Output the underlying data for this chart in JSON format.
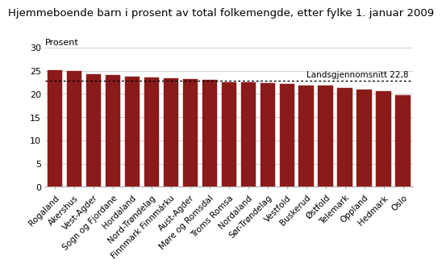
{
  "title": "Hjemmeboende barn i prosent av total folkemengde, etter fylke 1. januar 2009",
  "ylabel": "Prosent",
  "categories": [
    "Rogaland",
    "Akershus",
    "Vest-Agder",
    "Sogn og Fjordane",
    "Hordaland",
    "Nord-Trøndelag",
    "Finnmark Finnmárku",
    "Aust-Agder",
    "Møre og Romsdal",
    "Troms Romsa",
    "Nordaland",
    "Sør-Trøndelag",
    "Vestfold",
    "Buskerud",
    "Østfold",
    "Telemark",
    "Oppland",
    "Hedmark",
    "Oslo"
  ],
  "values": [
    25.2,
    24.9,
    24.3,
    24.0,
    23.7,
    23.6,
    23.4,
    23.2,
    23.1,
    22.6,
    22.5,
    22.3,
    22.1,
    21.9,
    21.8,
    21.3,
    20.9,
    20.6,
    19.7
  ],
  "bar_color": "#8B1A1A",
  "mean_value": 22.8,
  "mean_label": "Landsgjennomsnitt 22,8",
  "ylim": [
    0,
    30
  ],
  "yticks": [
    0,
    5,
    10,
    15,
    20,
    25,
    30
  ],
  "background_color": "#ffffff",
  "grid_color": "#d0d0d0",
  "title_fontsize": 9.5,
  "tick_fontsize": 8,
  "mean_label_fontsize": 7.5
}
